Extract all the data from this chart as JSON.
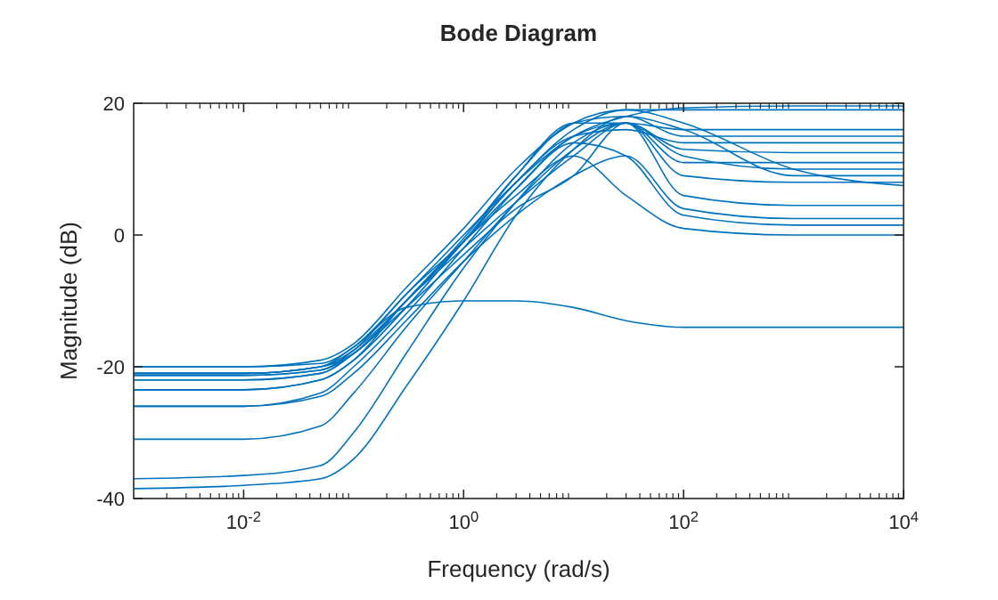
{
  "chart_data": {
    "type": "line",
    "title": "Bode Diagram",
    "xlabel": "Frequency (rad/s)",
    "ylabel": "Magnitude (dB)",
    "log": "x",
    "xlim": [
      0.001,
      10000
    ],
    "ylim": [
      -40,
      20
    ],
    "xticks": [
      {
        "value": 0.01,
        "label": "10$^{-2}$"
      },
      {
        "value": 1,
        "label": "10$^{0}$"
      },
      {
        "value": 100,
        "label": "10$^{2}$"
      },
      {
        "value": 10000,
        "label": "10$^{4}$"
      }
    ],
    "yticks": [
      -40,
      -20,
      0,
      20
    ],
    "grid": false,
    "line_style": "solid",
    "x": [
      0.001,
      0.01,
      0.05,
      0.1,
      0.3,
      1,
      3,
      10,
      30,
      100,
      1000,
      10000
    ],
    "series": [
      {
        "color": "#0072bd",
        "values": [
          -20,
          -20,
          -19.5,
          -17,
          -9,
          0,
          8,
          15,
          18,
          19.3,
          19.6,
          19.6
        ]
      },
      {
        "color": "#0072bd",
        "values": [
          -21,
          -21,
          -20,
          -17.5,
          -10,
          -1,
          8,
          16,
          19,
          19,
          19,
          19
        ]
      },
      {
        "color": "#0072bd",
        "values": [
          -21.3,
          -21.3,
          -20.5,
          -18,
          -10,
          -1,
          9,
          17,
          17,
          16,
          16,
          16
        ]
      },
      {
        "color": "#0072bd",
        "values": [
          -22,
          -22,
          -21,
          -18,
          -10,
          -0.5,
          9,
          17,
          18,
          15,
          15,
          15
        ]
      },
      {
        "color": "#0072bd",
        "values": [
          -23.5,
          -23.5,
          -22,
          -19,
          -11,
          -1,
          8,
          15,
          16,
          14,
          14,
          14
        ]
      },
      {
        "color": "#0072bd",
        "values": [
          -26,
          -26,
          -24,
          -20,
          -12,
          -2,
          7,
          15,
          17,
          13,
          12.5,
          12.5
        ]
      },
      {
        "color": "#0072bd",
        "values": [
          -31,
          -31,
          -29,
          -24,
          -14,
          -4,
          5,
          13,
          17,
          11,
          11,
          11
        ]
      },
      {
        "color": "#0072bd",
        "values": [
          -37,
          -36.5,
          -35,
          -30,
          -18,
          -5,
          5,
          14,
          17,
          12,
          10,
          10
        ]
      },
      {
        "color": "#0072bd",
        "values": [
          -38.5,
          -38,
          -37,
          -34,
          -23,
          -10,
          3,
          13,
          18,
          16,
          9,
          9
        ]
      },
      {
        "color": "#0072bd",
        "values": [
          -21,
          -21,
          -20,
          -17,
          -11,
          -10,
          -10,
          -11,
          -13,
          -14,
          -14,
          -14
        ]
      },
      {
        "color": "#0072bd",
        "values": [
          -21,
          -21,
          -20,
          -18,
          -10,
          -2,
          5,
          12,
          17,
          9,
          8,
          8
        ]
      },
      {
        "color": "#0072bd",
        "values": [
          -22,
          -22,
          -21,
          -18,
          -11,
          -3,
          4,
          9,
          17,
          6,
          4.5,
          4.5
        ]
      },
      {
        "color": "#0072bd",
        "values": [
          -21.3,
          -21.3,
          -20.5,
          -17.5,
          -9,
          -1,
          7,
          14,
          12,
          3,
          1.5,
          1.5
        ]
      },
      {
        "color": "#0072bd",
        "values": [
          -23.5,
          -23.5,
          -22,
          -19,
          -10,
          -1,
          6,
          12,
          6,
          1,
          0,
          0
        ]
      },
      {
        "color": "#0072bd",
        "values": [
          -26,
          -26,
          -24.5,
          -21,
          -13,
          -4,
          3,
          9,
          12,
          4,
          2.5,
          2.5
        ]
      },
      {
        "color": "#0072bd",
        "values": [
          -20,
          -20,
          -19,
          -16.5,
          -8,
          1,
          10,
          17,
          19,
          17,
          10,
          7.5
        ]
      }
    ]
  }
}
